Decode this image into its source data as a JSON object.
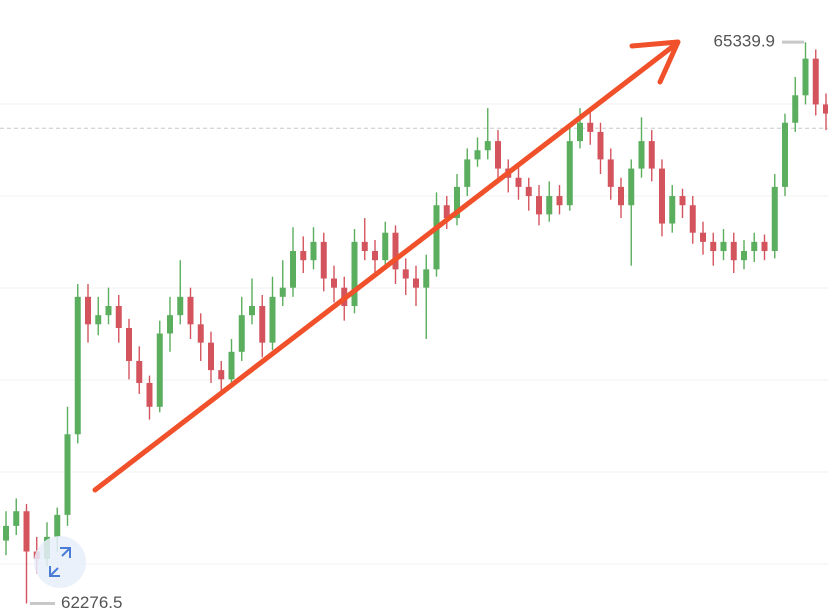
{
  "chart_data": {
    "type": "candlestick",
    "ylim": [
      62230,
      65570
    ],
    "up_color": "#5aae5e",
    "down_color": "#d4545e",
    "price_line": 64870,
    "high_marker": 65339.9,
    "low_marker": 62276.5,
    "open": [
      62620,
      62700,
      62780,
      62560,
      62520,
      62640,
      62760,
      63200,
      63950,
      63800,
      63850,
      63900,
      63780,
      63600,
      63480,
      63350,
      63750,
      63850,
      63950,
      63800,
      63700,
      63550,
      63500,
      63650,
      63850,
      63900,
      63700,
      63950,
      64000,
      64200,
      64150,
      64250,
      64050,
      64000,
      63900,
      64250,
      64200,
      64150,
      64300,
      64100,
      64050,
      64000,
      64100,
      64450,
      64380,
      64550,
      64700,
      64750,
      64800,
      64650,
      64600,
      64550,
      64500,
      64400,
      64500,
      64450,
      64800,
      64900,
      64850,
      64700,
      64550,
      64450,
      64650,
      64800,
      64650,
      64350,
      64500,
      64450,
      64300,
      64250,
      64200,
      64250,
      64150,
      64200,
      64250,
      64200,
      64550,
      64900,
      65050,
      65250,
      65000
    ],
    "high": [
      62780,
      62850,
      62820,
      62640,
      62720,
      62800,
      63350,
      64020,
      64020,
      63950,
      64000,
      63960,
      63830,
      63680,
      63520,
      63820,
      63950,
      64150,
      64000,
      63860,
      63760,
      63600,
      63720,
      63950,
      64050,
      63960,
      64060,
      64150,
      64330,
      64280,
      64330,
      64300,
      64120,
      64060,
      64320,
      64380,
      64260,
      64360,
      64340,
      64160,
      64120,
      64180,
      64520,
      64500,
      64620,
      64760,
      64820,
      64980,
      64860,
      64700,
      64660,
      64600,
      64560,
      64580,
      64560,
      64880,
      64980,
      64960,
      64900,
      64760,
      64600,
      64700,
      64930,
      64860,
      64700,
      64560,
      64540,
      64500,
      64360,
      64300,
      64320,
      64300,
      64260,
      64300,
      64290,
      64620,
      64950,
      65150,
      65339.9,
      65300,
      65060
    ],
    "low": [
      62540,
      62650,
      62276.5,
      62440,
      62480,
      62560,
      62700,
      63150,
      63700,
      63740,
      63800,
      63700,
      63500,
      63420,
      63280,
      63320,
      63650,
      63800,
      63720,
      63600,
      63480,
      63420,
      63460,
      63600,
      63800,
      63620,
      63660,
      63900,
      63950,
      64080,
      64100,
      63980,
      63920,
      63820,
      63860,
      64150,
      64080,
      64100,
      64020,
      63960,
      63900,
      63720,
      64060,
      64320,
      64340,
      64500,
      64660,
      64700,
      64580,
      64520,
      64480,
      64420,
      64340,
      64360,
      64400,
      64420,
      64760,
      64780,
      64620,
      64480,
      64380,
      64120,
      64600,
      64580,
      64280,
      64300,
      64380,
      64240,
      64180,
      64120,
      64150,
      64080,
      64100,
      64140,
      64150,
      64160,
      64500,
      64850,
      65000,
      64940,
      64860
    ],
    "close": [
      62700,
      62780,
      62560,
      62520,
      62640,
      62760,
      63200,
      63950,
      63800,
      63850,
      63900,
      63780,
      63600,
      63480,
      63350,
      63750,
      63850,
      63950,
      63800,
      63700,
      63550,
      63500,
      63650,
      63850,
      63900,
      63700,
      63950,
      64000,
      64200,
      64150,
      64250,
      64050,
      64000,
      63900,
      64250,
      64200,
      64150,
      64300,
      64100,
      64050,
      64000,
      64100,
      64450,
      64380,
      64550,
      64700,
      64750,
      64800,
      64650,
      64600,
      64550,
      64500,
      64400,
      64500,
      64450,
      64800,
      64900,
      64850,
      64700,
      64550,
      64450,
      64650,
      64800,
      64650,
      64350,
      64500,
      64450,
      64300,
      64250,
      64200,
      64250,
      64150,
      64200,
      64250,
      64200,
      64550,
      64900,
      65050,
      65250,
      65000,
      64950
    ]
  }
}
